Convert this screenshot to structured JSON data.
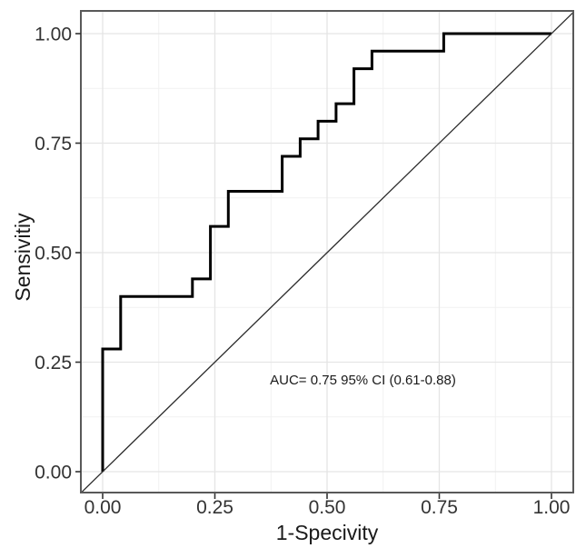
{
  "chart_data": {
    "type": "line",
    "subtype": "roc-step-curve",
    "title": "",
    "xlabel": "1-Specivity",
    "ylabel": "Sensivitiy",
    "xlim": [
      0,
      1
    ],
    "ylim": [
      0,
      1
    ],
    "grid": "major+minor",
    "legend": "none",
    "x_ticks": [
      {
        "value": 0.0,
        "label": "0.00"
      },
      {
        "value": 0.25,
        "label": "0.25"
      },
      {
        "value": 0.5,
        "label": "0.50"
      },
      {
        "value": 0.75,
        "label": "0.75"
      },
      {
        "value": 1.0,
        "label": "1.00"
      }
    ],
    "y_ticks": [
      {
        "value": 0.0,
        "label": "0.00"
      },
      {
        "value": 0.25,
        "label": "0.25"
      },
      {
        "value": 0.5,
        "label": "0.50"
      },
      {
        "value": 0.75,
        "label": "0.75"
      },
      {
        "value": 1.0,
        "label": "1.00"
      }
    ],
    "minor_grid_values": [
      0.125,
      0.375,
      0.625,
      0.875
    ],
    "series": [
      {
        "name": "roc-curve",
        "type": "step",
        "points": [
          [
            0.0,
            0.0
          ],
          [
            0.0,
            0.28
          ],
          [
            0.04,
            0.28
          ],
          [
            0.04,
            0.4
          ],
          [
            0.2,
            0.4
          ],
          [
            0.2,
            0.44
          ],
          [
            0.24,
            0.44
          ],
          [
            0.24,
            0.56
          ],
          [
            0.28,
            0.56
          ],
          [
            0.28,
            0.64
          ],
          [
            0.4,
            0.64
          ],
          [
            0.4,
            0.72
          ],
          [
            0.44,
            0.72
          ],
          [
            0.44,
            0.76
          ],
          [
            0.48,
            0.76
          ],
          [
            0.48,
            0.8
          ],
          [
            0.52,
            0.8
          ],
          [
            0.52,
            0.84
          ],
          [
            0.56,
            0.84
          ],
          [
            0.56,
            0.92
          ],
          [
            0.6,
            0.92
          ],
          [
            0.6,
            0.96
          ],
          [
            0.76,
            0.96
          ],
          [
            0.76,
            1.0
          ],
          [
            1.0,
            1.0
          ]
        ]
      },
      {
        "name": "reference-diagonal",
        "type": "abline",
        "from": [
          0,
          0
        ],
        "to": [
          1,
          1
        ]
      }
    ],
    "annotation": {
      "text": "AUC= 0.75 95% CI (0.61-0.88)",
      "x": 0.58,
      "y": 0.21,
      "auc": "0.75",
      "ci": "0.61-0.88"
    }
  },
  "style": {
    "background": "#ffffff",
    "panel_border": "#595959",
    "grid_major": "#e5e5e5",
    "grid_minor": "#f1f1f1",
    "roc_line": "#000000",
    "diagonal_line": "#2b2b2b",
    "tick_mark": "#333333",
    "tick_label": "#333333",
    "axis_title": "#1a1a1a",
    "annotation": "#1a1a1a"
  }
}
